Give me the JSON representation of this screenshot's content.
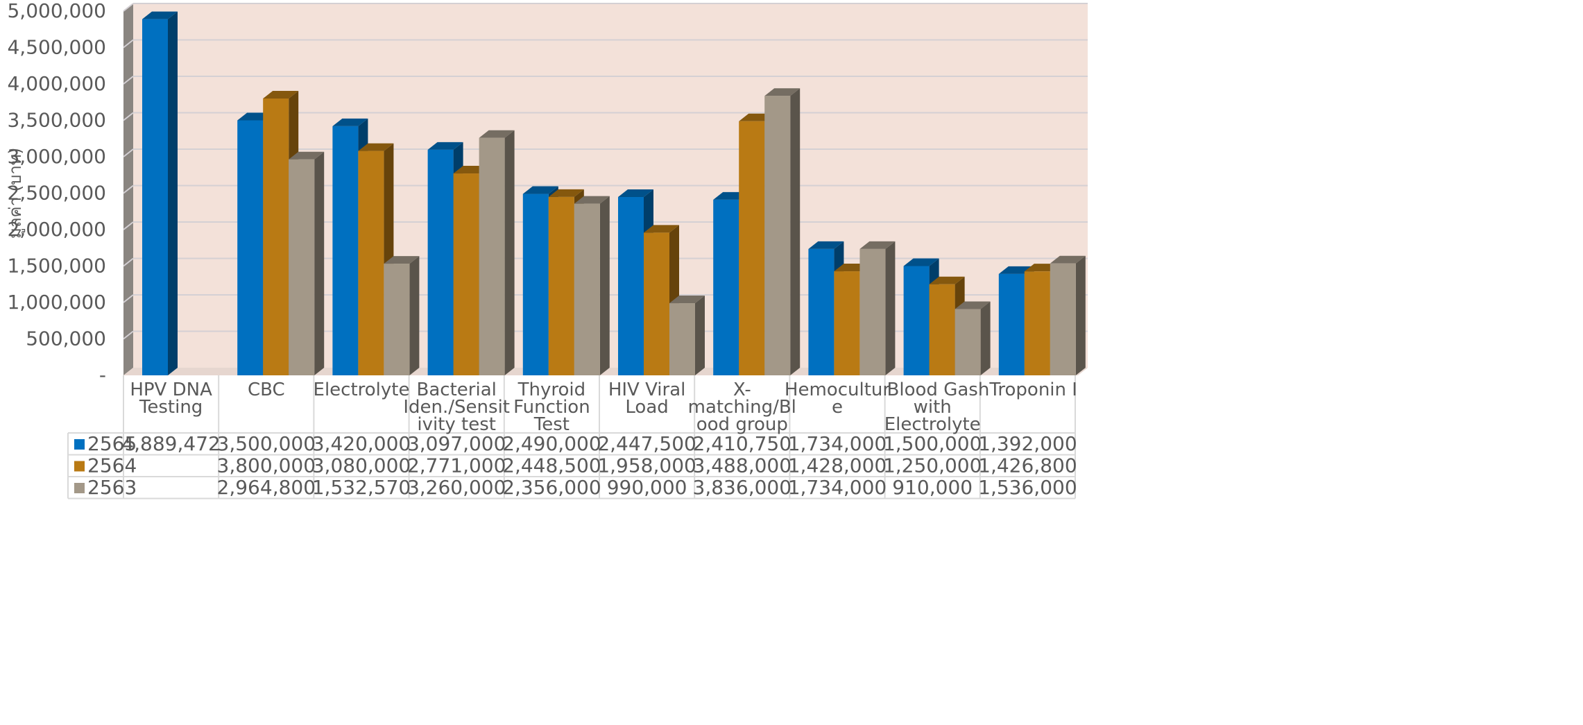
{
  "chart_data": {
    "type": "bar",
    "style": "3d-clustered-column-with-data-table",
    "ylabel": "มูลค่า (บาท)",
    "ylim": [
      0,
      5000000
    ],
    "ytick_step": 500000,
    "ytick_labels": [
      "-",
      "500,000",
      "1,000,000",
      "1,500,000",
      "2,000,000",
      "2,500,000",
      "3,000,000",
      "3,500,000",
      "4,000,000",
      "4,500,000",
      "5,000,000"
    ],
    "grid": true,
    "legend": "in-data-table",
    "categories": [
      [
        "HPV DNA",
        "Testing"
      ],
      [
        "CBC"
      ],
      [
        "Electrolyte"
      ],
      [
        "Bacterial",
        "Iden./Sensit",
        "ivity test"
      ],
      [
        "Thyroid",
        "Function",
        "Test"
      ],
      [
        "HIV Viral",
        "Load"
      ],
      [
        "X-",
        "matching/Bl",
        "ood group"
      ],
      [
        "Hemocultur",
        "e"
      ],
      [
        "Blood Gas",
        "with",
        "Electrolyte"
      ],
      [
        "hTroponin I"
      ]
    ],
    "series": [
      {
        "name": "2565",
        "color": "#0070c0",
        "values": [
          4889472,
          3500000,
          3420000,
          3097000,
          2490000,
          2447500,
          2410750,
          1734000,
          1500000,
          1392000
        ],
        "labels": [
          "4,889,472",
          "3,500,000",
          "3,420,000",
          "3,097,000",
          "2,490,000",
          "2,447,500",
          "2,410,750",
          "1,734,000",
          "1,500,000",
          "1,392,000"
        ]
      },
      {
        "name": "2564",
        "color": "#b97a14",
        "values": [
          null,
          3800000,
          3080000,
          2771000,
          2448500,
          1958000,
          3488000,
          1428000,
          1250000,
          1426800
        ],
        "labels": [
          "",
          "3,800,000",
          "3,080,000",
          "2,771,000",
          "2,448,500",
          "1,958,000",
          "3,488,000",
          "1,428,000",
          "1,250,000",
          "1,426,800"
        ]
      },
      {
        "name": "2563",
        "color": "#a39888",
        "values": [
          null,
          2964800,
          1532570,
          3260000,
          2356000,
          990000,
          3836000,
          1734000,
          910000,
          1536000
        ],
        "labels": [
          "",
          "2,964,800",
          "1,532,570",
          "3,260,000",
          "2,356,000",
          "990,000",
          "3,836,000",
          "1,734,000",
          "910,000",
          "1,536,000"
        ]
      }
    ],
    "colors": {
      "plot_background": "#f3e1d9",
      "gridline": "#d4d0d4",
      "side_wall": "#8a8580",
      "axis_text": "#595959",
      "table_border": "#d9d9d9"
    }
  }
}
